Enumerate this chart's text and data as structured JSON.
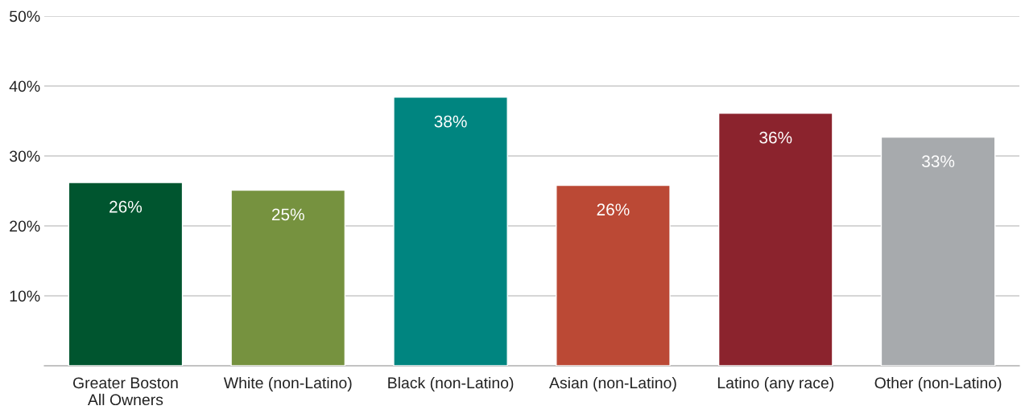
{
  "chart_data": {
    "type": "bar",
    "categories": [
      "Greater Boston\nAll Owners",
      "White (non-Latino)",
      "Black (non-Latino)",
      "Asian (non-Latino)",
      "Latino (any race)",
      "Other (non-Latino)"
    ],
    "values": [
      26.2,
      25.1,
      38.4,
      25.8,
      36.1,
      32.7
    ],
    "value_labels": [
      "26%",
      "25%",
      "38%",
      "26%",
      "36%",
      "33%"
    ],
    "colors": [
      "#00552f",
      "#76923f",
      "#008580",
      "#bb4935",
      "#8b232d",
      "#a7aaad"
    ],
    "ylim": [
      0,
      50
    ],
    "yticks": [
      {
        "value": 10,
        "label": "10%"
      },
      {
        "value": 20,
        "label": "20%"
      },
      {
        "value": 30,
        "label": "30%"
      },
      {
        "value": 40,
        "label": "40%"
      },
      {
        "value": 50,
        "label": "50%"
      }
    ],
    "grid": "y"
  }
}
